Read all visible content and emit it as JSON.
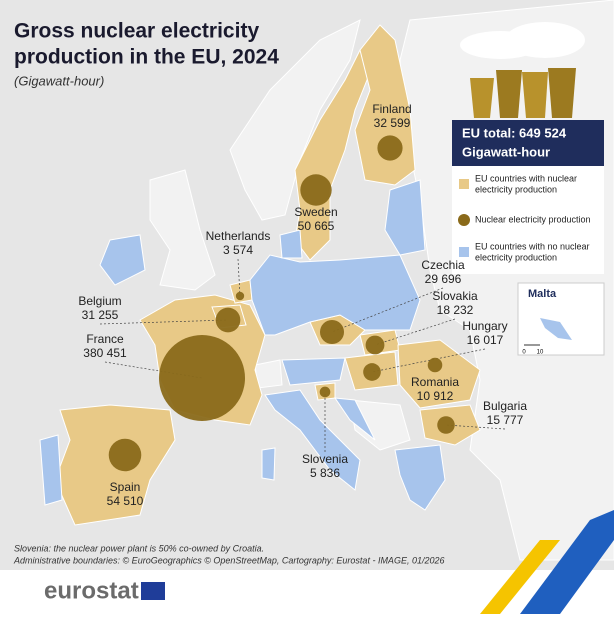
{
  "title": [
    "Gross nuclear electricity",
    "production in the EU, 2024"
  ],
  "subtitle": "(Gigawatt-hour)",
  "total_box": {
    "title": "EU total: 649 524",
    "unit": "Gigawatt-hour"
  },
  "legend": [
    [
      "EU countries with nuclear",
      "electricity production"
    ],
    [
      "Nuclear electricity production"
    ],
    [
      "EU countries with no nuclear",
      "electricity production"
    ]
  ],
  "inset": {
    "title": "Malta",
    "scale": [
      "0",
      "10"
    ]
  },
  "countries": [
    {
      "name": "Finland",
      "value": 32599,
      "value_label": "32 599"
    },
    {
      "name": "Sweden",
      "value": 50665,
      "value_label": "50 665"
    },
    {
      "name": "Netherlands",
      "value": 3574,
      "value_label": "3 574"
    },
    {
      "name": "Belgium",
      "value": 31255,
      "value_label": "31 255"
    },
    {
      "name": "France",
      "value": 380451,
      "value_label": "380 451"
    },
    {
      "name": "Spain",
      "value": 54510,
      "value_label": "54 510"
    },
    {
      "name": "Czechia",
      "value": 29696,
      "value_label": "29 696"
    },
    {
      "name": "Slovakia",
      "value": 18232,
      "value_label": "18 232"
    },
    {
      "name": "Hungary",
      "value": 16017,
      "value_label": "16 017"
    },
    {
      "name": "Romania",
      "value": 10912,
      "value_label": "10 912"
    },
    {
      "name": "Bulgaria",
      "value": 15777,
      "value_label": "15 777"
    },
    {
      "name": "Slovenia",
      "value": 5836,
      "value_label": "5 836"
    }
  ],
  "notes": [
    "Slovenia: the nuclear power plant is 50% co-owned by Croatia.",
    "Administrative boundaries: © EuroGeographics © OpenStreetMap, Cartography: Eurostat - IMAGE, 01/2026"
  ],
  "logo": "eurostat"
}
